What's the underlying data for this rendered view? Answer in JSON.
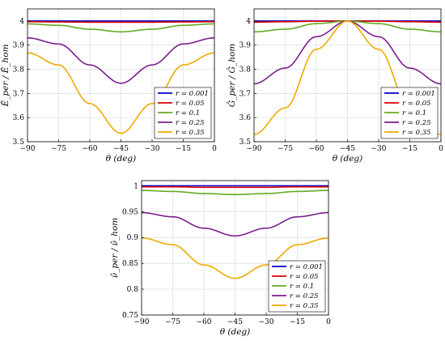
{
  "chart_data": [
    {
      "type": "line",
      "xlabel": "θ (deg)",
      "ylabel": "Ē_per / Ē_hom",
      "xlim": [
        -90,
        0
      ],
      "ylim": [
        3.5,
        4.05
      ],
      "xticks": [
        "−90",
        "−75",
        "−60",
        "−45",
        "−30",
        "−15",
        "0"
      ],
      "yticks": [
        "3.5",
        "3.6",
        "3.7",
        "3.8",
        "3.9",
        "4"
      ],
      "grid": true,
      "legend_position": "bottom-right",
      "series": [
        {
          "name": "r = 0.001",
          "color": "#0000cc",
          "x": [
            -90,
            -75,
            -60,
            -45,
            -30,
            -15,
            0
          ],
          "y": [
            4.0,
            4.0,
            4.0,
            4.0,
            4.0,
            4.0,
            4.0
          ]
        },
        {
          "name": "r = 0.05",
          "color": "#dd0000",
          "x": [
            -90,
            -75,
            -60,
            -45,
            -30,
            -15,
            0
          ],
          "y": [
            3.997,
            3.996,
            3.995,
            3.995,
            3.995,
            3.996,
            3.997
          ]
        },
        {
          "name": "r = 0.1",
          "color": "#66aa22",
          "x": [
            -90,
            -75,
            -60,
            -45,
            -30,
            -15,
            0
          ],
          "y": [
            3.988,
            3.982,
            3.966,
            3.955,
            3.966,
            3.982,
            3.988
          ]
        },
        {
          "name": "r = 0.25",
          "color": "#7a1f8c",
          "x": [
            -90,
            -75,
            -60,
            -45,
            -30,
            -15,
            0
          ],
          "y": [
            3.93,
            3.905,
            3.818,
            3.742,
            3.818,
            3.905,
            3.93
          ]
        },
        {
          "name": "r = 0.35",
          "color": "#eeaa00",
          "x": [
            -90,
            -75,
            -60,
            -45,
            -30,
            -15,
            0
          ],
          "y": [
            3.868,
            3.818,
            3.658,
            3.535,
            3.658,
            3.818,
            3.868
          ]
        }
      ]
    },
    {
      "type": "line",
      "xlabel": "θ (deg)",
      "ylabel": "Ĝ_per / Ĝ_hom",
      "xlim": [
        -90,
        0
      ],
      "ylim": [
        3.5,
        4.05
      ],
      "xticks": [
        "−90",
        "−75",
        "−60",
        "−45",
        "−30",
        "−15",
        "0"
      ],
      "yticks": [
        "3.5",
        "3.6",
        "3.7",
        "3.8",
        "3.9",
        "4"
      ],
      "grid": true,
      "legend_position": "bottom-right",
      "series": [
        {
          "name": "r = 0.001",
          "color": "#0000cc",
          "x": [
            -90,
            -75,
            -60,
            -45,
            -30,
            -15,
            0
          ],
          "y": [
            4.0,
            4.0,
            4.0,
            4.0,
            4.0,
            4.0,
            4.0
          ]
        },
        {
          "name": "r = 0.05",
          "color": "#dd0000",
          "x": [
            -90,
            -75,
            -60,
            -45,
            -30,
            -15,
            0
          ],
          "y": [
            3.995,
            3.997,
            3.999,
            4.0,
            3.999,
            3.997,
            3.995
          ]
        },
        {
          "name": "r = 0.1",
          "color": "#66aa22",
          "x": [
            -90,
            -75,
            -60,
            -45,
            -30,
            -15,
            0
          ],
          "y": [
            3.955,
            3.966,
            3.989,
            4.0,
            3.989,
            3.966,
            3.955
          ]
        },
        {
          "name": "r = 0.25",
          "color": "#7a1f8c",
          "x": [
            -90,
            -75,
            -60,
            -45,
            -30,
            -15,
            0
          ],
          "y": [
            3.74,
            3.805,
            3.935,
            4.0,
            3.935,
            3.805,
            3.74
          ]
        },
        {
          "name": "r = 0.35",
          "color": "#eeaa00",
          "x": [
            -90,
            -75,
            -60,
            -45,
            -30,
            -15,
            0
          ],
          "y": [
            3.53,
            3.64,
            3.883,
            4.0,
            3.883,
            3.64,
            3.53
          ]
        }
      ]
    },
    {
      "type": "line",
      "xlabel": "θ (deg)",
      "ylabel": "ν̂_per / ν̂_hom",
      "xlim": [
        -90,
        0
      ],
      "ylim": [
        0.75,
        1.01
      ],
      "xticks": [
        "−90",
        "−75",
        "−60",
        "−45",
        "−30",
        "−15",
        "0"
      ],
      "yticks": [
        "0.75",
        "0.8",
        "0.85",
        "0.9",
        "0.95",
        "1"
      ],
      "grid": true,
      "legend_position": "bottom-right",
      "series": [
        {
          "name": "r = 0.001",
          "color": "#0000cc",
          "x": [
            -90,
            -75,
            -60,
            -45,
            -30,
            -15,
            0
          ],
          "y": [
            1.0,
            1.0,
            1.0,
            1.0,
            1.0,
            1.0,
            1.0
          ]
        },
        {
          "name": "r = 0.05",
          "color": "#dd0000",
          "x": [
            -90,
            -75,
            -60,
            -45,
            -30,
            -15,
            0
          ],
          "y": [
            0.998,
            0.998,
            0.997,
            0.997,
            0.997,
            0.998,
            0.998
          ]
        },
        {
          "name": "r = 0.1",
          "color": "#66aa22",
          "x": [
            -90,
            -75,
            -60,
            -45,
            -30,
            -15,
            0
          ],
          "y": [
            0.991,
            0.989,
            0.985,
            0.983,
            0.985,
            0.989,
            0.991
          ]
        },
        {
          "name": "r = 0.25",
          "color": "#7a1f8c",
          "x": [
            -90,
            -75,
            -60,
            -45,
            -30,
            -15,
            0
          ],
          "y": [
            0.948,
            0.94,
            0.918,
            0.903,
            0.918,
            0.94,
            0.948
          ]
        },
        {
          "name": "r = 0.35",
          "color": "#eeaa00",
          "x": [
            -90,
            -75,
            -60,
            -45,
            -30,
            -15,
            0
          ],
          "y": [
            0.899,
            0.886,
            0.847,
            0.821,
            0.847,
            0.886,
            0.899
          ]
        }
      ]
    }
  ]
}
